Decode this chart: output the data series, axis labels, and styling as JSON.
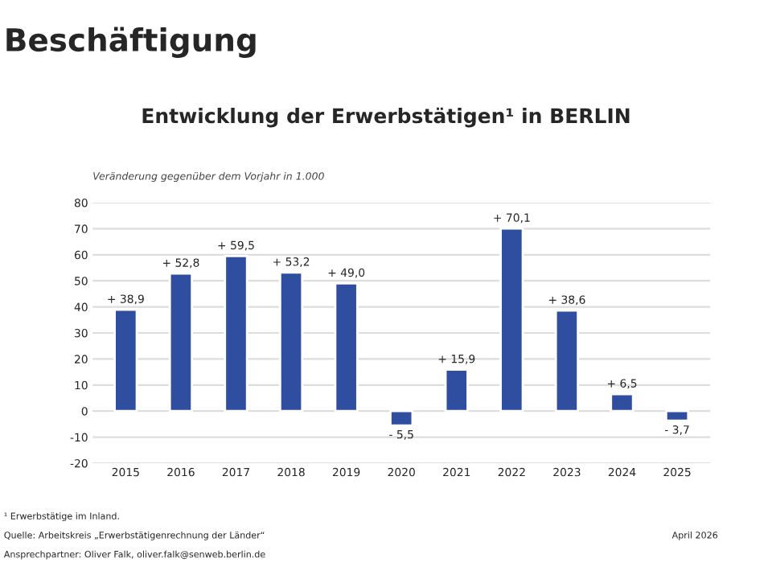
{
  "chart_data": {
    "type": "bar",
    "title": "Beschäftigung",
    "subtitle": "Entwicklung der Erwerbstätigen¹ in BERLIN",
    "ylabel": "Veränderung gegenüber dem Vorjahr in 1.000",
    "categories": [
      "2015",
      "2016",
      "2017",
      "2018",
      "2019",
      "2020",
      "2021",
      "2022",
      "2023",
      "2024",
      "2025"
    ],
    "values": [
      38.9,
      52.8,
      59.5,
      53.2,
      49.0,
      -5.5,
      15.9,
      70.1,
      38.6,
      6.5,
      -3.7
    ],
    "value_labels": [
      "+ 38,9",
      "+ 52,8",
      "+ 59,5",
      "+ 53,2",
      "+ 49,0",
      "- 5,5",
      "+ 15,9",
      "+ 70,1",
      "+ 38,6",
      "+ 6,5",
      "- 3,7"
    ],
    "color": "#2f4ea0",
    "ylim": [
      -20,
      80
    ],
    "yticks": [
      -20,
      -10,
      0,
      10,
      20,
      30,
      40,
      50,
      60,
      70,
      80
    ],
    "grid": "y",
    "annotations": [
      "¹ Erwerbstätige im Inland.",
      "Quelle: Arbeitskreis „Erwerbstätigenrechnung der Länder“",
      "Ansprechpartner: Oliver Falk, oliver.falk@senweb.berlin.de",
      "April 2026"
    ]
  }
}
